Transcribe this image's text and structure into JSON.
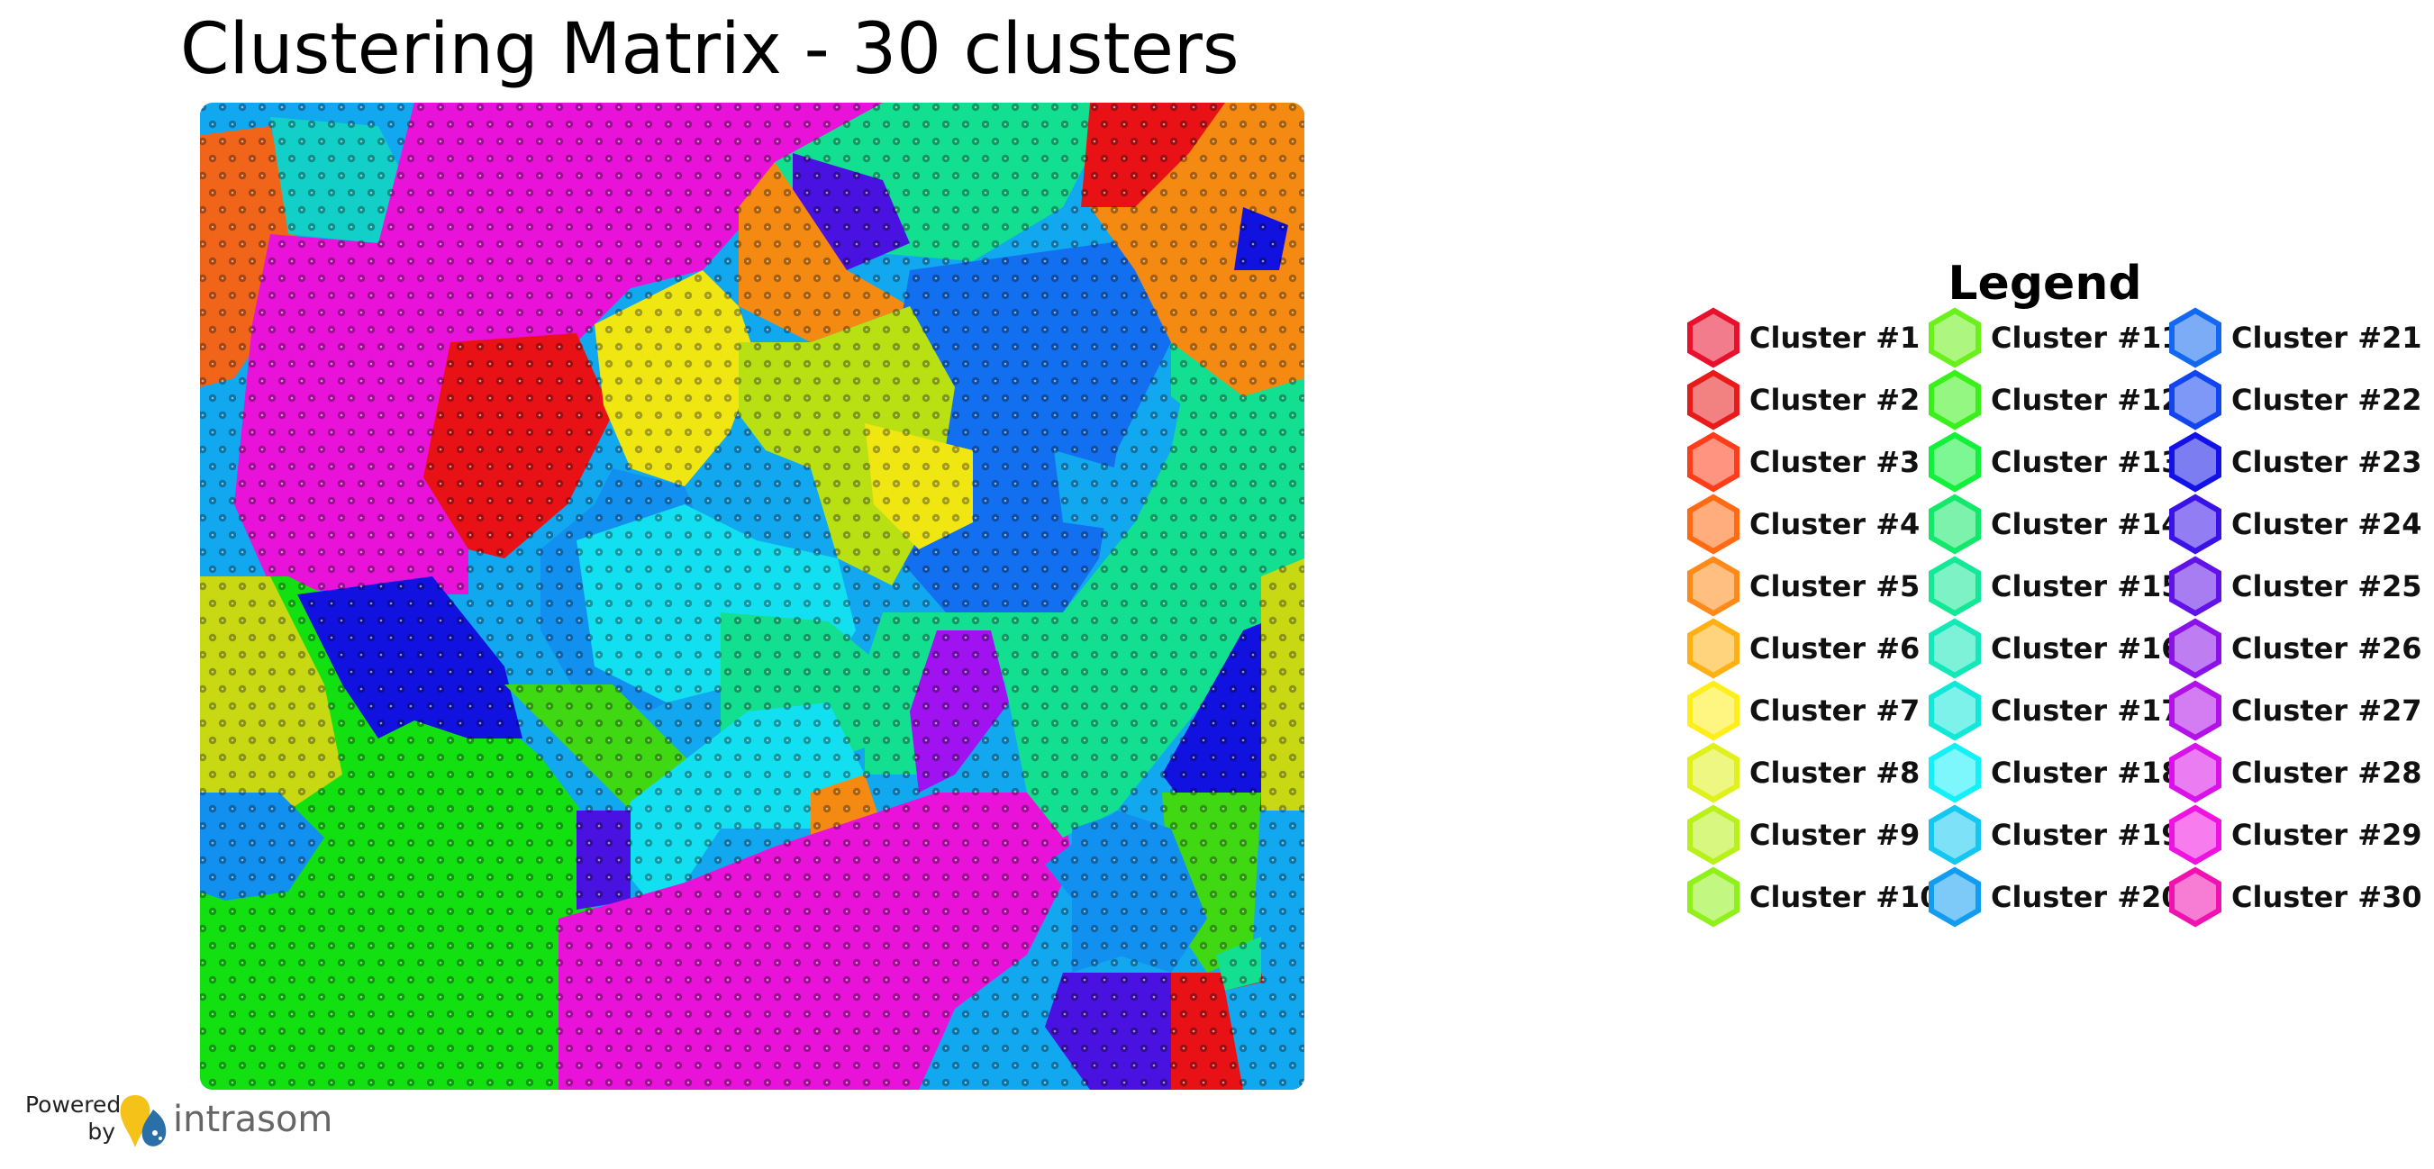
{
  "title": "Clustering Matrix - 30 clusters",
  "legend": {
    "title": "Legend",
    "items": [
      {
        "label": "Cluster #1",
        "color": "#e8102c"
      },
      {
        "label": "Cluster #2",
        "color": "#e81a1a"
      },
      {
        "label": "Cluster #3",
        "color": "#ff3d1a"
      },
      {
        "label": "Cluster #4",
        "color": "#ff6a12"
      },
      {
        "label": "Cluster #5",
        "color": "#ff8a1a"
      },
      {
        "label": "Cluster #6",
        "color": "#ffb012"
      },
      {
        "label": "Cluster #7",
        "color": "#ffee1a"
      },
      {
        "label": "Cluster #8",
        "color": "#e0f01a"
      },
      {
        "label": "Cluster #9",
        "color": "#b8f01a"
      },
      {
        "label": "Cluster #10",
        "color": "#90f01a"
      },
      {
        "label": "Cluster #11",
        "color": "#6af01a"
      },
      {
        "label": "Cluster #12",
        "color": "#3af01a"
      },
      {
        "label": "Cluster #13",
        "color": "#12f03a"
      },
      {
        "label": "Cluster #14",
        "color": "#12e86a"
      },
      {
        "label": "Cluster #15",
        "color": "#12e896"
      },
      {
        "label": "Cluster #16",
        "color": "#12e8b8"
      },
      {
        "label": "Cluster #17",
        "color": "#12e8d8"
      },
      {
        "label": "Cluster #18",
        "color": "#12f0f8"
      },
      {
        "label": "Cluster #19",
        "color": "#12c8f0"
      },
      {
        "label": "Cluster #20",
        "color": "#129cf0"
      },
      {
        "label": "Cluster #21",
        "color": "#1268f0"
      },
      {
        "label": "Cluster #22",
        "color": "#1244f0"
      },
      {
        "label": "Cluster #23",
        "color": "#1212e8"
      },
      {
        "label": "Cluster #24",
        "color": "#3a12e8"
      },
      {
        "label": "Cluster #25",
        "color": "#6012e8"
      },
      {
        "label": "Cluster #26",
        "color": "#8a12e8"
      },
      {
        "label": "Cluster #27",
        "color": "#b012e8"
      },
      {
        "label": "Cluster #28",
        "color": "#d812e8"
      },
      {
        "label": "Cluster #29",
        "color": "#f012e0"
      },
      {
        "label": "Cluster #30",
        "color": "#f012b0"
      }
    ]
  },
  "map_regions": [
    {
      "cluster": "Cluster #13",
      "color": "#12e010"
    },
    {
      "cluster": "Cluster #4",
      "color": "#f0651a"
    },
    {
      "cluster": "Cluster #17",
      "color": "#12d0c8"
    },
    {
      "cluster": "Cluster #29",
      "color": "#e812d8"
    },
    {
      "cluster": "Cluster #15",
      "color": "#12e090"
    },
    {
      "cluster": "Cluster #24",
      "color": "#4a12e0"
    },
    {
      "cluster": "Cluster #2",
      "color": "#e81216"
    },
    {
      "cluster": "Cluster #5",
      "color": "#f58a12"
    },
    {
      "cluster": "Cluster #21",
      "color": "#1270f0"
    },
    {
      "cluster": "Cluster #6",
      "color": "#f0b012"
    },
    {
      "cluster": "Cluster #9",
      "color": "#b8e012"
    },
    {
      "cluster": "Cluster #7",
      "color": "#f0e612"
    },
    {
      "cluster": "Cluster #19",
      "color": "#12a8f0"
    },
    {
      "cluster": "Cluster #18",
      "color": "#12e0f0"
    },
    {
      "cluster": "Cluster #27",
      "color": "#a012f0"
    },
    {
      "cluster": "Cluster #23",
      "color": "#1212e0"
    },
    {
      "cluster": "Cluster #8",
      "color": "#c8d812"
    },
    {
      "cluster": "Cluster #12",
      "color": "#40d812"
    },
    {
      "cluster": "Cluster #20",
      "color": "#1290f0"
    }
  ],
  "powered_by": {
    "text_line1": "Powered",
    "text_line2": "by",
    "brand": "intrasom"
  }
}
